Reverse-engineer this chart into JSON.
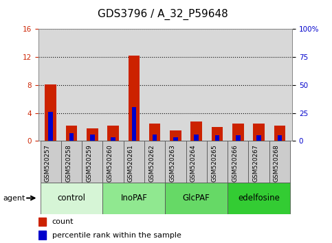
{
  "title": "GDS3796 / A_32_P59648",
  "samples": [
    "GSM520257",
    "GSM520258",
    "GSM520259",
    "GSM520260",
    "GSM520261",
    "GSM520262",
    "GSM520263",
    "GSM520264",
    "GSM520265",
    "GSM520266",
    "GSM520267",
    "GSM520268"
  ],
  "count_values": [
    8.1,
    2.2,
    1.8,
    2.2,
    12.2,
    2.5,
    1.5,
    2.8,
    2.0,
    2.5,
    2.5,
    2.2
  ],
  "percentile_values": [
    26,
    7,
    6,
    3,
    30,
    6,
    3,
    6,
    5,
    5,
    5,
    5
  ],
  "bar_width": 0.55,
  "pct_bar_width": 0.22,
  "count_color": "#cc2200",
  "percentile_color": "#0000cc",
  "ylim_left": [
    0,
    16
  ],
  "ylim_right": [
    0,
    100
  ],
  "yticks_left": [
    0,
    4,
    8,
    12,
    16
  ],
  "ytick_labels_left": [
    "0",
    "4",
    "8",
    "12",
    "16"
  ],
  "yticks_right": [
    0,
    25,
    50,
    75,
    100
  ],
  "ytick_labels_right": [
    "0",
    "25",
    "50",
    "75",
    "100%"
  ],
  "groups": [
    {
      "label": "control",
      "start": 0,
      "end": 3,
      "color": "#d6f5d6"
    },
    {
      "label": "InoPAF",
      "start": 3,
      "end": 6,
      "color": "#90e890"
    },
    {
      "label": "GlcPAF",
      "start": 6,
      "end": 9,
      "color": "#66d966"
    },
    {
      "label": "edelfosine",
      "start": 9,
      "end": 12,
      "color": "#33cc33"
    }
  ],
  "agent_label": "agent",
  "legend_count_label": "count",
  "legend_pct_label": "percentile rank within the sample",
  "title_fontsize": 11,
  "tick_fontsize": 7.5,
  "sample_fontsize": 6.5,
  "label_fontsize": 8,
  "group_fontsize": 8.5,
  "background_color": "#ffffff",
  "plot_bg_color": "#d8d8d8",
  "sample_box_color": "#cccccc",
  "grid_color": "#000000",
  "right_axis_color": "#0000cc",
  "left_axis_color": "#cc2200"
}
